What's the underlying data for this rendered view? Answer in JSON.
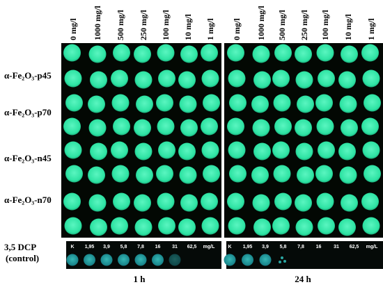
{
  "rows": [
    "α-Fe₂O₃-p45",
    "α-Fe₂O₃-p70",
    "α-Fe₂O₃-n45",
    "α-Fe₂O₃-n70"
  ],
  "control": [
    "3,5 DCP",
    "(control)"
  ],
  "panels": [
    {
      "label": "1 h",
      "columns": [
        "0 mg/l",
        "1000 mg/l",
        "500 mg/l",
        "250 mg/l",
        "100 mg/l",
        "10 mg/l",
        "1 mg/l"
      ],
      "control_labels": [
        "K",
        "1,95",
        "3,9",
        "5,8",
        "7,8",
        "16",
        "31",
        "62,5",
        "mg/L"
      ]
    },
    {
      "label": "24 h",
      "columns": [
        "0 mg/l",
        "1000 mg/l",
        "500 mg/l",
        "250 mg/l",
        "100 mg/l",
        "10 mg/l",
        "1 mg/l"
      ],
      "control_labels": [
        "K",
        "1,95",
        "3,9",
        "5,8",
        "7,8",
        "16",
        "31",
        "62,5",
        "mg/L"
      ]
    }
  ]
}
